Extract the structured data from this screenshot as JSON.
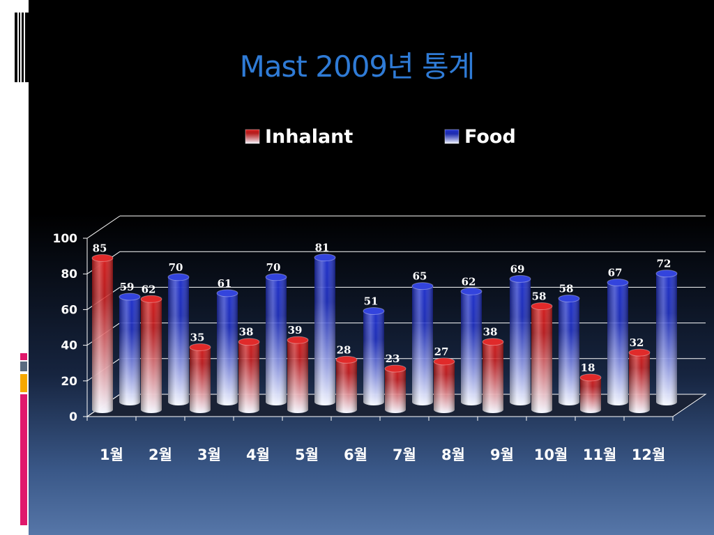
{
  "slide": {
    "title": "Mast 2009년 통계"
  },
  "chart_data": {
    "type": "bar",
    "title": "Mast 2009년 통계",
    "categories": [
      "1월",
      "2월",
      "3월",
      "4월",
      "5월",
      "6월",
      "7월",
      "8월",
      "9월",
      "10월",
      "11월",
      "12월"
    ],
    "series": [
      {
        "name": "Inhalant",
        "values": [
          85,
          62,
          35,
          38,
          39,
          28,
          23,
          27,
          38,
          58,
          18,
          32
        ],
        "color": "#d42020"
      },
      {
        "name": "Food",
        "values": [
          59,
          70,
          61,
          70,
          81,
          51,
          65,
          62,
          69,
          58,
          67,
          72
        ],
        "color": "#2233cc"
      }
    ],
    "y_ticks": [
      "0",
      "20",
      "40",
      "60",
      "80",
      "100"
    ],
    "ylim": [
      0,
      100
    ],
    "legend_position": "top",
    "grid": true,
    "style": "3D cylinder, clustered"
  }
}
